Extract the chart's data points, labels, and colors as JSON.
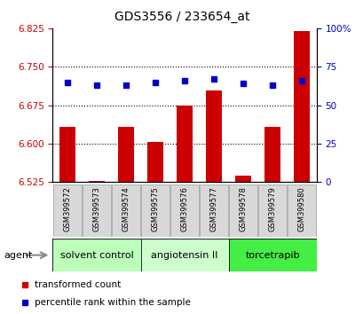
{
  "title": "GDS3556 / 233654_at",
  "samples": [
    "GSM399572",
    "GSM399573",
    "GSM399574",
    "GSM399575",
    "GSM399576",
    "GSM399577",
    "GSM399578",
    "GSM399579",
    "GSM399580"
  ],
  "bar_values": [
    6.633,
    6.528,
    6.633,
    6.603,
    6.675,
    6.703,
    6.538,
    6.633,
    6.82
  ],
  "percentile_values": [
    65,
    63,
    63,
    65,
    66,
    67,
    64,
    63,
    66
  ],
  "ylim_left": [
    6.525,
    6.825
  ],
  "ylim_right": [
    0,
    100
  ],
  "yticks_left": [
    6.525,
    6.6,
    6.675,
    6.75,
    6.825
  ],
  "yticks_right": [
    0,
    25,
    50,
    75,
    100
  ],
  "bar_color": "#cc0000",
  "dot_color": "#0000cc",
  "groups": [
    {
      "label": "solvent control",
      "start": 0,
      "end": 3,
      "color": "#bbffbb"
    },
    {
      "label": "angiotensin II",
      "start": 3,
      "end": 6,
      "color": "#ccffcc"
    },
    {
      "label": "torcetrapib",
      "start": 6,
      "end": 9,
      "color": "#44ee44"
    }
  ],
  "agent_label": "agent",
  "legend_items": [
    {
      "label": "transformed count",
      "color": "#cc0000"
    },
    {
      "label": "percentile rank within the sample",
      "color": "#0000cc"
    }
  ],
  "grid_yticks": [
    6.6,
    6.675,
    6.75
  ],
  "tick_label_color_left": "#cc0000",
  "tick_label_color_right": "#0000cc",
  "figsize": [
    4.1,
    3.54
  ],
  "dpi": 100
}
